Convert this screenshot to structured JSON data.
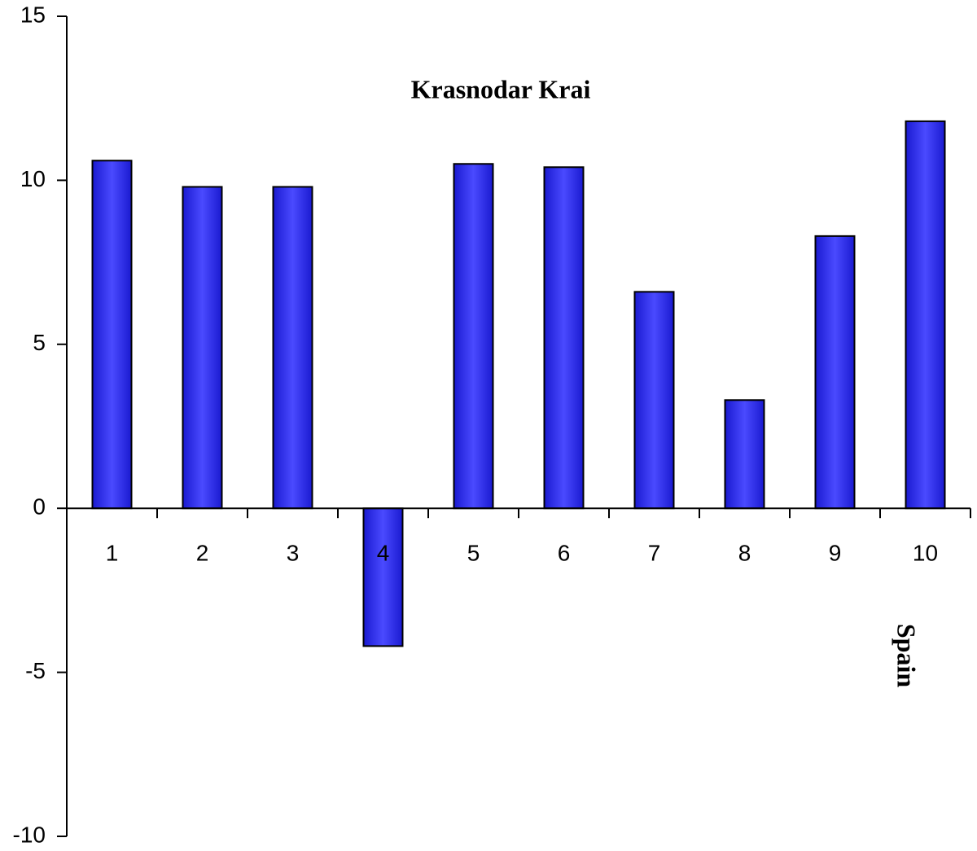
{
  "chart_data": {
    "type": "bar",
    "title": "Krasnodar Krai",
    "xlabel": "Spain",
    "categories": [
      "1",
      "2",
      "3",
      "4",
      "5",
      "6",
      "7",
      "8",
      "9",
      "10"
    ],
    "values": [
      10.6,
      9.8,
      9.8,
      -4.2,
      10.5,
      10.4,
      6.6,
      3.3,
      8.3,
      11.8
    ],
    "color": "#3333ff",
    "ylim": [
      -10,
      15
    ],
    "yticks": [
      -10,
      -5,
      0,
      5,
      10,
      15
    ],
    "grid": false
  }
}
